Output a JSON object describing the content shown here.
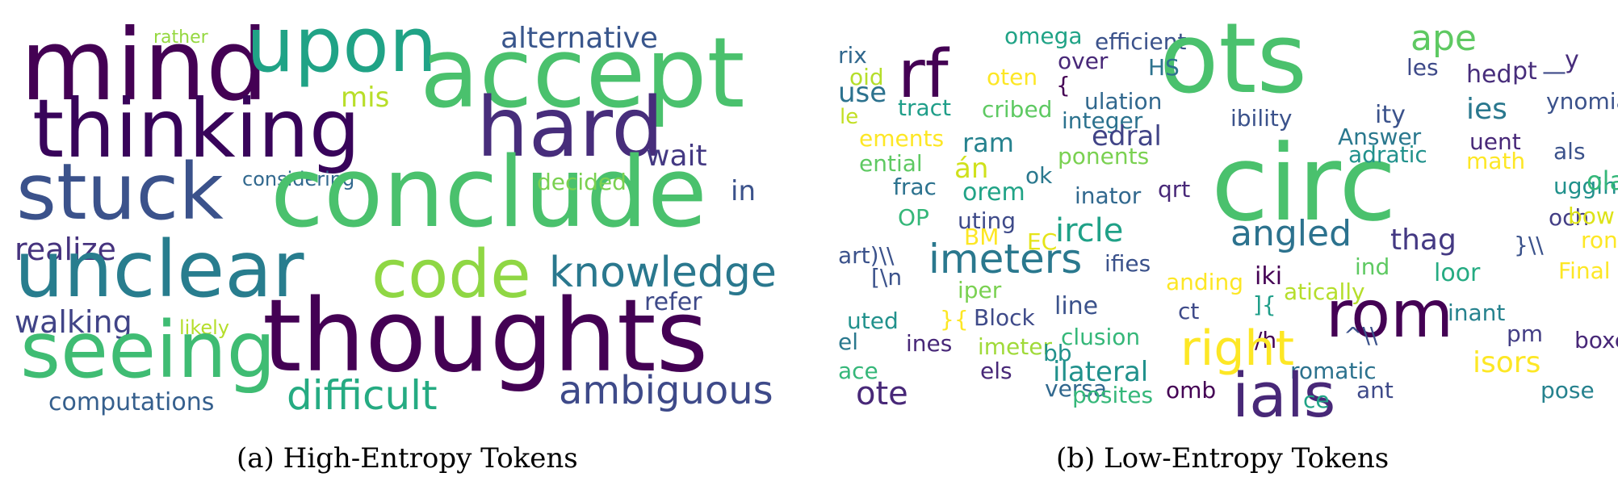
{
  "figure": {
    "panels": [
      {
        "caption": "(a) High-Entropy Tokens",
        "words": [
          {
            "text": "rather",
            "color": "#95d840"
          },
          {
            "text": "mind",
            "color": "#440154"
          },
          {
            "text": "upon",
            "color": "#20a386"
          },
          {
            "text": "accept",
            "color": "#4ac16d"
          },
          {
            "text": "alternative",
            "color": "#39568c"
          },
          {
            "text": "mis",
            "color": "#b8de29"
          },
          {
            "text": "thinking",
            "color": "#38045a"
          },
          {
            "text": "hard",
            "color": "#472d7b"
          },
          {
            "text": "wait",
            "color": "#443983"
          },
          {
            "text": "stuck",
            "color": "#3b528b"
          },
          {
            "text": "considering",
            "color": "#31688e"
          },
          {
            "text": "conclude",
            "color": "#4ac16d"
          },
          {
            "text": "decided",
            "color": "#7ad151"
          },
          {
            "text": "in",
            "color": "#3b528b"
          },
          {
            "text": "realize",
            "color": "#46337e"
          },
          {
            "text": "unclear",
            "color": "#287d8e"
          },
          {
            "text": "code",
            "color": "#8fd744"
          },
          {
            "text": "knowledge",
            "color": "#2a788e"
          },
          {
            "text": "refer",
            "color": "#3e4a89"
          },
          {
            "text": "walking",
            "color": "#414487"
          },
          {
            "text": "likely",
            "color": "#b5de2b"
          },
          {
            "text": "seeing",
            "color": "#3fbc73"
          },
          {
            "text": "thoughts",
            "color": "#440154"
          },
          {
            "text": "difficult",
            "color": "#25ab82"
          },
          {
            "text": "computations",
            "color": "#355f8d"
          },
          {
            "text": "ambiguous",
            "color": "#3e4a89"
          }
        ]
      },
      {
        "caption": "(b) Low-Entropy Tokens",
        "words": [
          {
            "text": "omega",
            "color": "#20a386"
          },
          {
            "text": "efficient",
            "color": "#3b528b"
          },
          {
            "text": "ots",
            "color": "#4ac16d"
          },
          {
            "text": "ape",
            "color": "#5ec962"
          },
          {
            "text": "rix",
            "color": "#31688e"
          },
          {
            "text": "rf",
            "color": "#440154"
          },
          {
            "text": "oten",
            "color": "#fde725"
          },
          {
            "text": "over",
            "color": "#482878"
          },
          {
            "text": "HS",
            "color": "#2c728e"
          },
          {
            "text": "les",
            "color": "#3e4a89"
          },
          {
            "text": "oid",
            "color": "#b5de2b"
          },
          {
            "text": "{",
            "color": "#440154"
          },
          {
            "text": "hed",
            "color": "#472d7b"
          },
          {
            "text": "pt",
            "color": "#472d7b"
          },
          {
            "text": "—",
            "color": "#3e4a89"
          },
          {
            "text": "y",
            "color": "#472d7b"
          },
          {
            "text": "use",
            "color": "#2c728e"
          },
          {
            "text": "tract",
            "color": "#1f9e89"
          },
          {
            "text": "cribed",
            "color": "#5ec962"
          },
          {
            "text": "ulation",
            "color": "#31688e"
          },
          {
            "text": "ies",
            "color": "#2a788e"
          },
          {
            "text": "ynomials",
            "color": "#3b528b"
          },
          {
            "text": "le",
            "color": "#c2df23"
          },
          {
            "text": "integer",
            "color": "#2c728e"
          },
          {
            "text": "ibility",
            "color": "#3b528b"
          },
          {
            "text": "ity",
            "color": "#3b528b"
          },
          {
            "text": "ements",
            "color": "#fde725"
          },
          {
            "text": "ram",
            "color": "#26828e"
          },
          {
            "text": "edral",
            "color": "#414487"
          },
          {
            "text": "Answer",
            "color": "#2a788e"
          },
          {
            "text": "uent",
            "color": "#482878"
          },
          {
            "text": "ential",
            "color": "#5ec962"
          },
          {
            "text": "án",
            "color": "#d0e11c"
          },
          {
            "text": "ok",
            "color": "#2a788e"
          },
          {
            "text": "ponents",
            "color": "#7ad151"
          },
          {
            "text": "circ",
            "color": "#4ac16d"
          },
          {
            "text": "adratic",
            "color": "#21918c"
          },
          {
            "text": "math",
            "color": "#fde725"
          },
          {
            "text": "als",
            "color": "#3b528b"
          },
          {
            "text": "frac",
            "color": "#2c728e"
          },
          {
            "text": "orem",
            "color": "#20a386"
          },
          {
            "text": "inator",
            "color": "#31688e"
          },
          {
            "text": "qrt",
            "color": "#482878"
          },
          {
            "text": "ugging",
            "color": "#21918c"
          },
          {
            "text": "ola",
            "color": "#35b779"
          },
          {
            "text": "OP",
            "color": "#35b779"
          },
          {
            "text": "uting",
            "color": "#3e4a89"
          },
          {
            "text": "och",
            "color": "#433e85"
          },
          {
            "text": "bow",
            "color": "#dde318"
          },
          {
            "text": "BM",
            "color": "#fde725"
          },
          {
            "text": "EC",
            "color": "#e5e419"
          },
          {
            "text": "ircle",
            "color": "#1fa187"
          },
          {
            "text": "angled",
            "color": "#2c728e"
          },
          {
            "text": "thag",
            "color": "#443983"
          },
          {
            "text": "}\\\\",
            "color": "#3b528b"
          },
          {
            "text": "ron",
            "color": "#fde725"
          },
          {
            "text": "art)\\\\",
            "color": "#3b528b"
          },
          {
            "text": "imeters",
            "color": "#2a788e"
          },
          {
            "text": "ifies",
            "color": "#3b528b"
          },
          {
            "text": "ind",
            "color": "#5ec962"
          },
          {
            "text": "[\\n",
            "color": "#3b528b"
          },
          {
            "text": "anding",
            "color": "#fde725"
          },
          {
            "text": "iki",
            "color": "#440154"
          },
          {
            "text": "atically",
            "color": "#b5de2b"
          },
          {
            "text": "loor",
            "color": "#25ab82"
          },
          {
            "text": "Final",
            "color": "#fde725"
          },
          {
            "text": "iper",
            "color": "#7ad151"
          },
          {
            "text": "line",
            "color": "#3b528b"
          },
          {
            "text": "ct",
            "color": "#3e4a89"
          },
          {
            "text": "]{",
            "color": "#1f9e89"
          },
          {
            "text": "rom",
            "color": "#440154"
          },
          {
            "text": "inant",
            "color": "#26828e"
          },
          {
            "text": "uted",
            "color": "#21918c"
          },
          {
            "text": "}{",
            "color": "#fde725"
          },
          {
            "text": "Block",
            "color": "#3e4a89"
          },
          {
            "text": "clusion",
            "color": "#35b779"
          },
          {
            "text": "/h",
            "color": "#440154"
          },
          {
            "text": "^\\\\",
            "color": "#3b528b"
          },
          {
            "text": "pm",
            "color": "#433e85"
          },
          {
            "text": "boxed",
            "color": "#482878"
          },
          {
            "text": "el",
            "color": "#2a788e"
          },
          {
            "text": "ines",
            "color": "#482878"
          },
          {
            "text": "imeter",
            "color": "#a0da39"
          },
          {
            "text": "bb",
            "color": "#21918c"
          },
          {
            "text": "right",
            "color": "#fde725"
          },
          {
            "text": "isors",
            "color": "#fde725"
          },
          {
            "text": "els",
            "color": "#482878"
          },
          {
            "text": "ace",
            "color": "#35b779"
          },
          {
            "text": "ilateral",
            "color": "#21918c"
          },
          {
            "text": "romatic",
            "color": "#2c728e"
          },
          {
            "text": "ote",
            "color": "#482878"
          },
          {
            "text": "versa",
            "color": "#31688e"
          },
          {
            "text": "posites",
            "color": "#35b779"
          },
          {
            "text": "omb",
            "color": "#440154"
          },
          {
            "text": "ials",
            "color": "#482878"
          },
          {
            "text": "ant",
            "color": "#3e4a89"
          },
          {
            "text": "pose",
            "color": "#26828e"
          },
          {
            "text": "ce",
            "color": "#20a386"
          }
        ]
      }
    ]
  }
}
